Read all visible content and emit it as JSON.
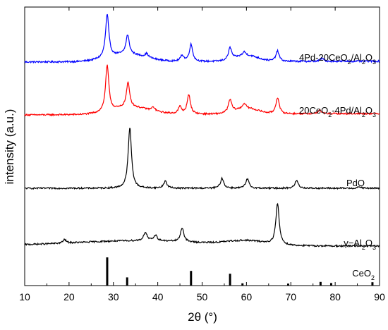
{
  "chart_data": {
    "type": "line",
    "xlabel": "2θ (°)",
    "ylabel": "intensity (a.u.)",
    "xlim": [
      10,
      90
    ],
    "xticks": [
      "10",
      "20",
      "30",
      "40",
      "50",
      "60",
      "70",
      "80",
      "90"
    ],
    "yticks_shown": false,
    "grid": false,
    "series": [
      {
        "name": "4Pd-20CeO2/Al2O3",
        "color": "#0000ff",
        "peaks": [
          [
            28.6,
            58
          ],
          [
            33.2,
            26
          ],
          [
            47.5,
            23
          ],
          [
            56.3,
            16
          ],
          [
            59.5,
            5
          ],
          [
            67.0,
            14
          ],
          [
            77.0,
            4
          ],
          [
            45.5,
            8
          ],
          [
            37.5,
            5
          ]
        ],
        "hump": [
          [
            33,
            10,
            10
          ],
          [
            60,
            6,
            8
          ]
        ],
        "baseline_left": 2,
        "baseline_right": 3
      },
      {
        "name": "20CeO2-4Pd/Al2O3",
        "color": "#ff0000",
        "peaks": [
          [
            28.6,
            65
          ],
          [
            33.3,
            35
          ],
          [
            47.0,
            27
          ],
          [
            45.0,
            10
          ],
          [
            56.3,
            18
          ],
          [
            59.5,
            7
          ],
          [
            67.0,
            23
          ],
          [
            76.5,
            5
          ],
          [
            39.0,
            5
          ]
        ],
        "hump": [
          [
            34,
            10,
            10
          ],
          [
            60,
            6,
            8
          ]
        ],
        "baseline_left": 2,
        "baseline_right": 4
      },
      {
        "name": "PdO",
        "color": "#000000",
        "peaks": [
          [
            33.7,
            86
          ],
          [
            41.7,
            10
          ],
          [
            54.5,
            14
          ],
          [
            60.2,
            13
          ],
          [
            71.3,
            11
          ],
          [
            85.5,
            2
          ]
        ],
        "hump": [],
        "baseline_left": 1,
        "baseline_right": 1
      },
      {
        "name": "γ-Al2O3",
        "color": "#000000",
        "peaks": [
          [
            67.0,
            58
          ],
          [
            45.5,
            20
          ],
          [
            37.2,
            12
          ],
          [
            39.5,
            8
          ],
          [
            19.0,
            5
          ]
        ],
        "hump": [
          [
            36,
            32,
            7
          ],
          [
            60,
            10,
            6
          ]
        ],
        "baseline_left": 2,
        "baseline_right": 1
      }
    ],
    "reference": {
      "name": "CeO2",
      "lines": [
        [
          28.6,
          100
        ],
        [
          33.1,
          29
        ],
        [
          47.5,
          52
        ],
        [
          56.3,
          42
        ],
        [
          59.1,
          8
        ],
        [
          69.4,
          7
        ],
        [
          76.7,
          13
        ],
        [
          79.1,
          9
        ],
        [
          88.4,
          12
        ]
      ]
    },
    "labels": {
      "s1": {
        "a": "4Pd-20CeO",
        "b": "2",
        "c": "/Al",
        "d": "2",
        "e": "O",
        "f": "3"
      },
      "s2": {
        "a": "20CeO",
        "b": "2",
        "c": "-4Pd/Al",
        "d": "2",
        "e": "O",
        "f": "3"
      },
      "s3": "PdO",
      "s4": {
        "a": "γ−Al",
        "b": "2",
        "c": "O",
        "d": "3"
      },
      "ref": {
        "a": "CeO",
        "b": "2"
      }
    }
  }
}
